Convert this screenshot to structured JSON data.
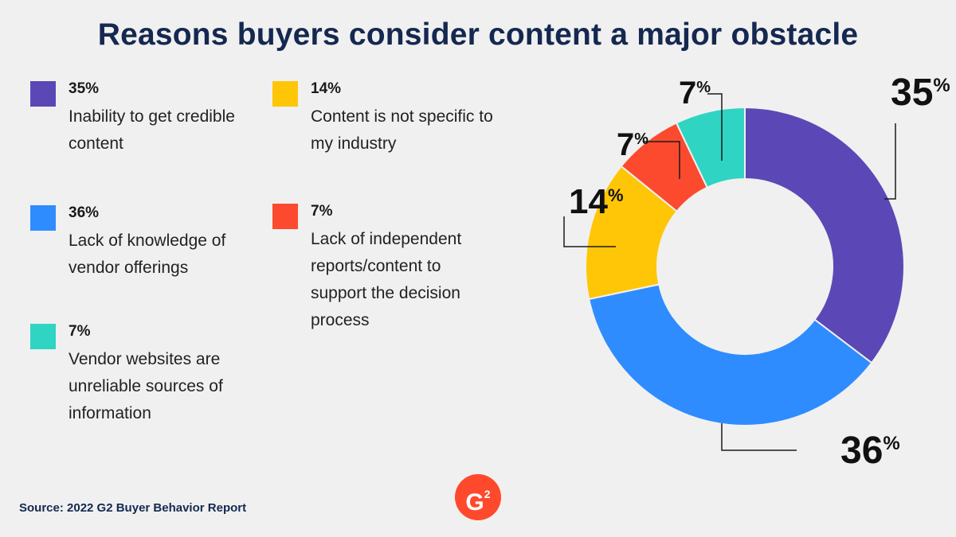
{
  "title": "Reasons buyers consider content a major obstacle",
  "source": "Source: 2022 G2 Buyer Behavior Report",
  "logo": {
    "text": "G",
    "superscript": "2"
  },
  "colors": {
    "purple": "#5b48b6",
    "blue": "#2e8cff",
    "teal": "#2fd4c2",
    "yellow": "#ffc607",
    "red": "#fc4a2e",
    "title": "#142850"
  },
  "legend": [
    {
      "pct": "35%",
      "label": "Inability to get credible content",
      "color": "#5b48b6"
    },
    {
      "pct": "36%",
      "label": "Lack of knowledge of vendor offerings",
      "color": "#2e8cff"
    },
    {
      "pct": "7%",
      "label": "Vendor websites are unreliable sources of information",
      "color": "#2fd4c2"
    },
    {
      "pct": "14%",
      "label": "Content is not specific to my industry",
      "color": "#ffc607"
    },
    {
      "pct": "7%",
      "label": "Lack of independent reports/content to support the decision process",
      "color": "#fc4a2e"
    }
  ],
  "chart_data": {
    "type": "pie",
    "donut": true,
    "slices": [
      {
        "label": "Inability to get credible content",
        "value": 35,
        "display": "35%",
        "color": "#5b48b6"
      },
      {
        "label": "Lack of knowledge of vendor offerings",
        "value": 36,
        "display": "36%",
        "color": "#2e8cff"
      },
      {
        "label": "Content is not specific to my industry",
        "value": 14,
        "display": "14%",
        "color": "#ffc607"
      },
      {
        "label": "Lack of independent reports/content to support the decision process",
        "value": 7,
        "display": "7%",
        "color": "#fc4a2e"
      },
      {
        "label": "Vendor websites are unreliable sources of information",
        "value": 7,
        "display": "7%",
        "color": "#2fd4c2"
      }
    ]
  }
}
